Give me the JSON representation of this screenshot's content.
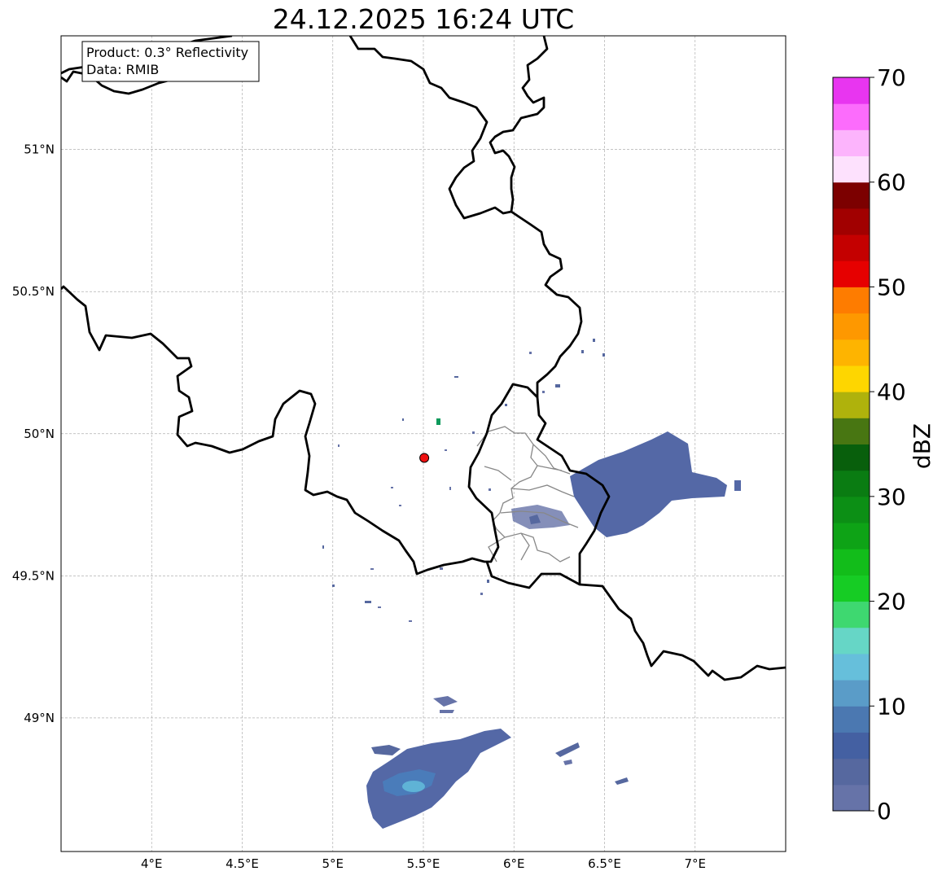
{
  "title": "24.12.2025 16:24 UTC",
  "info": {
    "product": "Product: 0.3° Reflectivity",
    "source": "Data: RMIB"
  },
  "map": {
    "lon_range": [
      3.5,
      7.5
    ],
    "lat_range": [
      48.53,
      51.4
    ],
    "gridlines": true,
    "x_ticks": [
      {
        "lon": 4.0,
        "label": "4°E"
      },
      {
        "lon": 4.5,
        "label": "4.5°E"
      },
      {
        "lon": 5.0,
        "label": "5°E"
      },
      {
        "lon": 5.5,
        "label": "5.5°E"
      },
      {
        "lon": 6.0,
        "label": "6°E"
      },
      {
        "lon": 6.5,
        "label": "6.5°E"
      },
      {
        "lon": 7.0,
        "label": "7°E"
      }
    ],
    "y_ticks": [
      {
        "lat": 51.0,
        "label": "51°N"
      },
      {
        "lat": 50.5,
        "label": "50.5°N"
      },
      {
        "lat": 50.0,
        "label": "50°N"
      },
      {
        "lat": 49.5,
        "label": "49.5°N"
      },
      {
        "lat": 49.0,
        "label": "49°N"
      }
    ],
    "radar_site": {
      "lon": 5.505,
      "lat": 49.915,
      "color": "#ee1111"
    }
  },
  "colorbar": {
    "label": "dBZ",
    "min": 0,
    "max": 70,
    "step": 2.5,
    "ticks": [
      "0",
      "10",
      "20",
      "30",
      "40",
      "50",
      "60",
      "70"
    ],
    "colors": [
      "#6673a8",
      "#56689f",
      "#4460a2",
      "#4b78b1",
      "#5a9cc8",
      "#66bfdb",
      "#66d6c6",
      "#3ed870",
      "#16cc24",
      "#12bd1a",
      "#0ea316",
      "#0c8f15",
      "#0a7c12",
      "#085f0c",
      "#487612",
      "#afb20c",
      "#fed600",
      "#feb400",
      "#fe9800",
      "#fe7c00",
      "#e60000",
      "#c40000",
      "#a10000",
      "#7c0000",
      "#fde1fd",
      "#fcb4fc",
      "#fc6cfc",
      "#e835f0"
    ]
  }
}
